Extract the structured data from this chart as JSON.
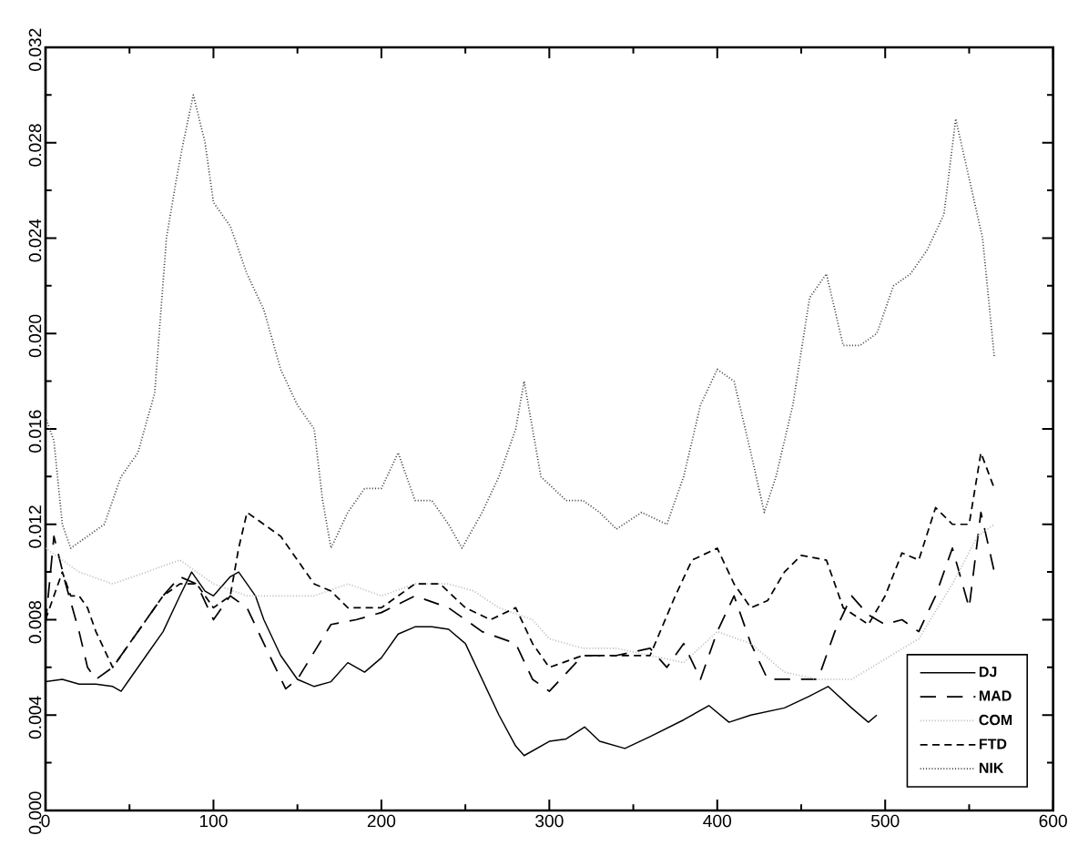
{
  "chart_data": {
    "type": "line",
    "xlim": [
      0,
      600
    ],
    "xticks": [
      0,
      100,
      200,
      300,
      400,
      500,
      600
    ],
    "ylim": [
      0,
      0.032
    ],
    "yticks": [
      {
        "value": 0,
        "label": "0.000"
      },
      {
        "value": 0.004,
        "label": "0.004"
      },
      {
        "value": 0.008,
        "label": "0.008"
      },
      {
        "value": 0.012,
        "label": "0.012"
      },
      {
        "value": 0.016,
        "label": "0.016"
      },
      {
        "value": 0.02,
        "label": "0.020"
      },
      {
        "value": 0.024,
        "label": "0.024"
      },
      {
        "value": 0.028,
        "label": "0.028"
      },
      {
        "value": 0.032,
        "label": "0.032"
      }
    ],
    "grid": false,
    "legend": "bottom right",
    "marker": "none",
    "series": [
      {
        "name": "DJ",
        "color": "#000000",
        "line_style": "solid",
        "x": [
          0,
          10,
          20,
          30,
          40,
          45,
          50,
          60,
          70,
          80,
          87,
          95,
          100,
          110,
          115,
          125,
          130,
          140,
          150,
          160,
          170,
          180,
          190,
          200,
          210,
          220,
          230,
          240,
          250,
          260,
          270,
          280,
          285,
          300,
          310,
          321,
          330,
          345,
          360,
          380,
          395,
          407,
          420,
          440,
          455,
          466,
          480,
          490,
          495
        ],
        "values": [
          0.0054,
          0.0055,
          0.0053,
          0.0053,
          0.0052,
          0.005,
          0.0055,
          0.0065,
          0.0075,
          0.009,
          0.01,
          0.0092,
          0.009,
          0.0098,
          0.01,
          0.009,
          0.008,
          0.0065,
          0.0055,
          0.0052,
          0.0054,
          0.0062,
          0.0058,
          0.0064,
          0.0074,
          0.0077,
          0.0077,
          0.0076,
          0.007,
          0.0055,
          0.004,
          0.0027,
          0.0023,
          0.0029,
          0.003,
          0.0035,
          0.0029,
          0.0026,
          0.0031,
          0.0038,
          0.0044,
          0.0037,
          0.004,
          0.0043,
          0.0048,
          0.0052,
          0.0043,
          0.0037,
          0.004
        ]
      },
      {
        "name": "MAD",
        "color": "#000000",
        "line_style": "dashed",
        "x": [
          0,
          5,
          12,
          20,
          25,
          30,
          40,
          55,
          70,
          80,
          90,
          100,
          110,
          120,
          130,
          143,
          150,
          170,
          185,
          200,
          220,
          240,
          260,
          280,
          290,
          300,
          320,
          340,
          360,
          370,
          380,
          390,
          400,
          410,
          420,
          430,
          445,
          460,
          470,
          480,
          490,
          500,
          510,
          520,
          530,
          540,
          550,
          557,
          565
        ],
        "values": [
          0.0078,
          0.0115,
          0.0095,
          0.0075,
          0.006,
          0.0055,
          0.006,
          0.0075,
          0.009,
          0.0098,
          0.0095,
          0.008,
          0.009,
          0.0085,
          0.007,
          0.0051,
          0.0055,
          0.0078,
          0.008,
          0.0083,
          0.009,
          0.0085,
          0.0075,
          0.007,
          0.0055,
          0.005,
          0.0065,
          0.0065,
          0.0068,
          0.006,
          0.007,
          0.0055,
          0.0075,
          0.009,
          0.007,
          0.0055,
          0.0055,
          0.0055,
          0.0075,
          0.009,
          0.0082,
          0.0078,
          0.008,
          0.0075,
          0.009,
          0.011,
          0.0085,
          0.0125,
          0.01
        ]
      },
      {
        "name": "COM",
        "color": "#bbbbbb",
        "line_style": "dotted",
        "x": [
          0,
          20,
          40,
          60,
          80,
          100,
          120,
          140,
          160,
          180,
          200,
          220,
          240,
          255,
          270,
          290,
          300,
          320,
          340,
          360,
          380,
          400,
          420,
          440,
          460,
          480,
          520,
          540,
          555,
          565
        ],
        "values": [
          0.011,
          0.01,
          0.0095,
          0.01,
          0.0105,
          0.0095,
          0.009,
          0.009,
          0.009,
          0.0095,
          0.009,
          0.0095,
          0.0095,
          0.0092,
          0.0085,
          0.008,
          0.0072,
          0.0068,
          0.0068,
          0.0065,
          0.0062,
          0.0075,
          0.007,
          0.0058,
          0.0055,
          0.0055,
          0.0072,
          0.0095,
          0.0115,
          0.012
        ]
      },
      {
        "name": "FTD",
        "color": "#000000",
        "line_style": "dashed",
        "x": [
          0,
          10,
          15,
          20,
          25,
          30,
          40,
          50,
          60,
          70,
          80,
          90,
          100,
          110,
          115,
          120,
          130,
          140,
          150,
          160,
          170,
          180,
          200,
          220,
          235,
          250,
          265,
          280,
          290,
          300,
          320,
          340,
          360,
          375,
          385,
          400,
          410,
          420,
          430,
          440,
          450,
          465,
          475,
          490,
          500,
          510,
          520,
          530,
          540,
          550,
          557,
          565
        ],
        "values": [
          0.008,
          0.01,
          0.009,
          0.009,
          0.0085,
          0.0075,
          0.006,
          0.007,
          0.008,
          0.009,
          0.0095,
          0.0095,
          0.0085,
          0.009,
          0.011,
          0.0125,
          0.012,
          0.0115,
          0.0105,
          0.0095,
          0.0092,
          0.0085,
          0.0085,
          0.0095,
          0.0095,
          0.0085,
          0.008,
          0.0085,
          0.007,
          0.006,
          0.0065,
          0.0065,
          0.0065,
          0.009,
          0.0105,
          0.011,
          0.0095,
          0.0085,
          0.0088,
          0.01,
          0.0107,
          0.0105,
          0.0085,
          0.0078,
          0.009,
          0.0108,
          0.0105,
          0.0127,
          0.012,
          0.012,
          0.015,
          0.0135
        ]
      },
      {
        "name": "NIK",
        "color": "#444444",
        "line_style": "dotted",
        "x": [
          0,
          5,
          10,
          15,
          25,
          35,
          45,
          55,
          65,
          72,
          78,
          82,
          88,
          95,
          100,
          110,
          120,
          130,
          140,
          150,
          160,
          165,
          170,
          180,
          190,
          200,
          210,
          220,
          230,
          240,
          248,
          260,
          270,
          280,
          285,
          295,
          310,
          320,
          330,
          340,
          355,
          370,
          380,
          390,
          400,
          410,
          420,
          428,
          435,
          445,
          455,
          465,
          475,
          485,
          495,
          505,
          515,
          525,
          535,
          542,
          550,
          558,
          565
        ],
        "values": [
          0.0165,
          0.0155,
          0.012,
          0.011,
          0.0115,
          0.012,
          0.014,
          0.015,
          0.0175,
          0.024,
          0.0265,
          0.028,
          0.03,
          0.028,
          0.0255,
          0.0245,
          0.0225,
          0.021,
          0.0185,
          0.017,
          0.016,
          0.013,
          0.011,
          0.0125,
          0.0135,
          0.0135,
          0.015,
          0.013,
          0.013,
          0.012,
          0.011,
          0.0125,
          0.014,
          0.016,
          0.018,
          0.014,
          0.013,
          0.013,
          0.0125,
          0.0118,
          0.0125,
          0.012,
          0.014,
          0.017,
          0.0185,
          0.018,
          0.015,
          0.0125,
          0.014,
          0.017,
          0.0215,
          0.0225,
          0.0195,
          0.0195,
          0.02,
          0.022,
          0.0225,
          0.0235,
          0.025,
          0.029,
          0.0265,
          0.024,
          0.019
        ]
      }
    ]
  }
}
